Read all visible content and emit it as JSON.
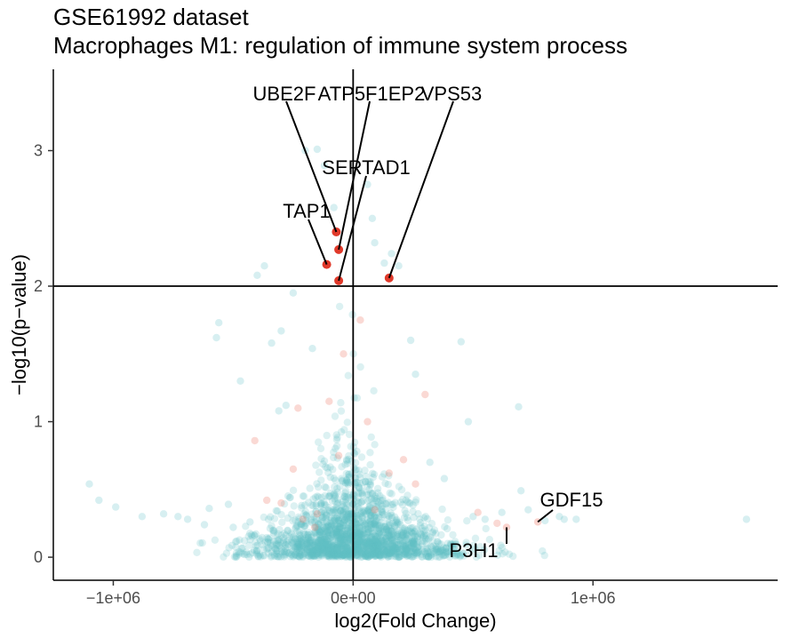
{
  "chart_data": {
    "type": "scatter",
    "title": "GSE61992 dataset",
    "subtitle": "Macrophages M1: regulation of immune system process",
    "xlabel": "log2(Fold Change)",
    "ylabel": "−log10(p−value)",
    "xlim": [
      -1250000,
      1770000
    ],
    "ylim": [
      -0.17,
      3.6
    ],
    "x_ticks": [
      {
        "value": -1000000,
        "label": "−1e+06"
      },
      {
        "value": 0,
        "label": "0e+00"
      },
      {
        "value": 1000000,
        "label": "1e+06"
      }
    ],
    "y_ticks": [
      {
        "value": 0,
        "label": "0"
      },
      {
        "value": 1,
        "label": "1"
      },
      {
        "value": 2,
        "label": "2"
      },
      {
        "value": 3,
        "label": "3"
      }
    ],
    "vline_x": 0,
    "hline_y": 2,
    "grid": false,
    "colors": {
      "background_points": "#5fbfc6",
      "faint_red_points": "#f08070",
      "highlight_points": "#e0392a"
    },
    "background_points": {
      "count": 1900,
      "note_hidden": ""
    },
    "highlighted": [
      {
        "name": "UBE2F",
        "x": -70000,
        "y": 2.4
      },
      {
        "name": "ATP5F1EP2",
        "x": -60000,
        "y": 2.27
      },
      {
        "name": "VPS53",
        "x": 150000,
        "y": 2.06
      },
      {
        "name": "SERTAD1",
        "x": -60000,
        "y": 2.04
      },
      {
        "name": "TAP1",
        "x": -110000,
        "y": 2.16
      }
    ],
    "labeled_non_sig": [
      {
        "name": "GDF15",
        "x": 770000,
        "y": 0.26
      },
      {
        "name": "P3H1",
        "x": 640000,
        "y": 0.22
      }
    ],
    "faint_red": [
      [
        -410000,
        0.86
      ],
      [
        -360000,
        0.42
      ],
      [
        -250000,
        0.65
      ],
      [
        -210000,
        0.28
      ],
      [
        -160000,
        0.22
      ],
      [
        -230000,
        1.1
      ],
      [
        -100000,
        1.15
      ],
      [
        -40000,
        1.5
      ],
      [
        30000,
        1.75
      ],
      [
        60000,
        1.0
      ],
      [
        300000,
        1.2
      ],
      [
        210000,
        0.72
      ],
      [
        260000,
        0.54
      ],
      [
        520000,
        0.33
      ],
      [
        600000,
        0.25
      ],
      [
        -300000,
        0.4
      ],
      [
        -150000,
        0.32
      ],
      [
        90000,
        0.35
      ],
      [
        150000,
        0.62
      ],
      [
        -60000,
        0.75
      ]
    ],
    "scattered_outliers": [
      [
        -1100000,
        0.54
      ],
      [
        -1060000,
        0.42
      ],
      [
        -990000,
        0.37
      ],
      [
        -790000,
        0.32
      ],
      [
        -730000,
        0.3
      ],
      [
        -690000,
        0.28
      ],
      [
        -600000,
        0.36
      ],
      [
        -560000,
        1.73
      ],
      [
        -570000,
        1.62
      ],
      [
        -520000,
        0.39
      ],
      [
        -470000,
        1.3
      ],
      [
        -400000,
        2.08
      ],
      [
        -370000,
        2.15
      ],
      [
        -300000,
        1.67
      ],
      [
        -250000,
        1.95
      ],
      [
        -200000,
        3.0
      ],
      [
        -150000,
        3.01
      ],
      [
        -120000,
        2.89
      ],
      [
        -80000,
        2.58
      ],
      [
        60000,
        2.75
      ],
      [
        80000,
        2.5
      ],
      [
        90000,
        2.32
      ],
      [
        130000,
        2.17
      ],
      [
        160000,
        2.24
      ],
      [
        190000,
        2.15
      ],
      [
        240000,
        1.6
      ],
      [
        260000,
        1.35
      ],
      [
        450000,
        1.59
      ],
      [
        480000,
        1.0
      ],
      [
        690000,
        1.11
      ],
      [
        700000,
        0.49
      ],
      [
        730000,
        0.35
      ],
      [
        800000,
        0.27
      ],
      [
        860000,
        0.3
      ],
      [
        880000,
        0.28
      ],
      [
        930000,
        0.28
      ],
      [
        1640000,
        0.28
      ],
      [
        -880000,
        0.3
      ],
      [
        -620000,
        0.24
      ],
      [
        -500000,
        0.22
      ],
      [
        -430000,
        0.26
      ],
      [
        550000,
        0.28
      ],
      [
        500000,
        0.3
      ],
      [
        620000,
        0.33
      ],
      [
        -340000,
        1.58
      ],
      [
        -280000,
        1.12
      ],
      [
        -310000,
        1.08
      ],
      [
        -170000,
        1.54
      ],
      [
        320000,
        0.7
      ],
      [
        380000,
        0.58
      ]
    ]
  }
}
